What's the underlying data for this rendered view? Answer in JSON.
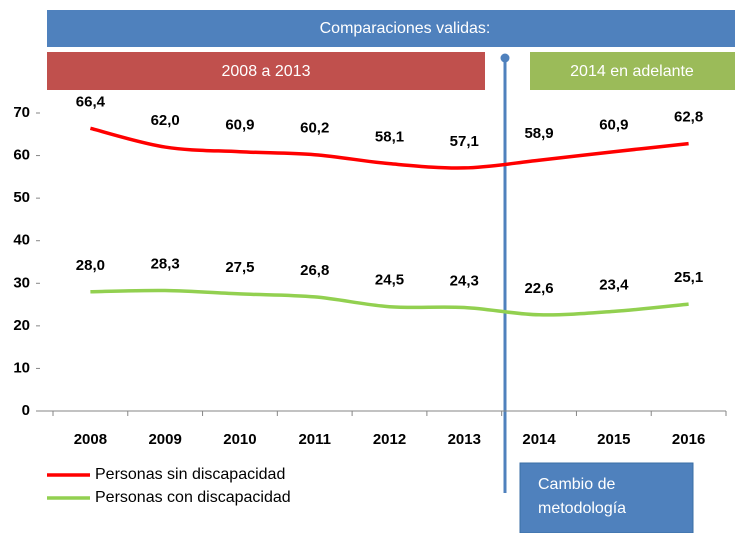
{
  "chart_data": {
    "type": "line",
    "categories": [
      "2008",
      "2009",
      "2010",
      "2011",
      "2012",
      "2013",
      "2014",
      "2015",
      "2016"
    ],
    "series": [
      {
        "name": "Personas sin discapacidad",
        "color": "#ff0000",
        "values": [
          66.4,
          62.0,
          60.9,
          60.2,
          58.1,
          57.1,
          58.9,
          60.9,
          62.8
        ],
        "value_labels": [
          "66,4",
          "62,0",
          "60,9",
          "60,2",
          "58,1",
          "57,1",
          "58,9",
          "60,9",
          "62,8"
        ]
      },
      {
        "name": "Personas con discapacidad",
        "color": "#92d050",
        "values": [
          28.0,
          28.3,
          27.5,
          26.8,
          24.5,
          24.3,
          22.6,
          23.4,
          25.1
        ],
        "value_labels": [
          "28,0",
          "28,3",
          "27,5",
          "26,8",
          "24,5",
          "24,3",
          "22,6",
          "23,4",
          "25,1"
        ]
      }
    ],
    "ylim": [
      0,
      70
    ],
    "yticks": [
      0,
      10,
      20,
      30,
      40,
      50,
      60,
      70
    ],
    "annotations": [
      "Comparaciones validas:",
      "2008 a 2013",
      "2014 en adelante",
      "Cambio de metodología"
    ]
  }
}
